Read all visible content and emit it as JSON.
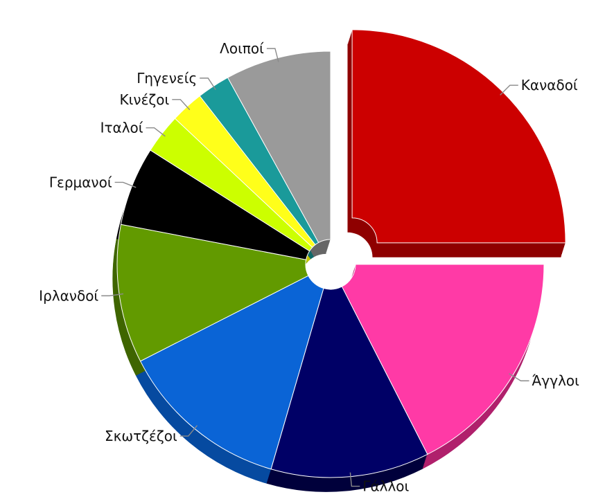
{
  "chart_data": {
    "type": "pie",
    "style": "3d-donut-exploded",
    "legend": "none",
    "slices": [
      {
        "label": "Καναδοί",
        "value": 25.0,
        "color": "#cc0000",
        "side": "#8f0000",
        "exploded": true
      },
      {
        "label": "Άγγλοι",
        "value": 17.5,
        "color": "#ff3aa6",
        "side": "#b0206c"
      },
      {
        "label": "Γάλλοι",
        "value": 12.0,
        "color": "#000066",
        "side": "#00003b"
      },
      {
        "label": "Σκωτζέζοι",
        "value": 13.0,
        "color": "#0a64d6",
        "side": "#064aa0"
      },
      {
        "label": "Ιρλανδοί",
        "value": 10.5,
        "color": "#629a00",
        "side": "#3f6500"
      },
      {
        "label": "Γερμανοί",
        "value": 6.0,
        "color": "#000000",
        "side": "#000000"
      },
      {
        "label": "Ιταλοί",
        "value": 3.0,
        "color": "#ccff00",
        "side": "#92b800"
      },
      {
        "label": "Κινέζοι",
        "value": 2.5,
        "color": "#ffff1a",
        "side": "#c4c400"
      },
      {
        "label": "Γηγενείς",
        "value": 2.5,
        "color": "#1a9a9a",
        "side": "#0f6a6a"
      },
      {
        "label": "Λοιποί",
        "value": 8.0,
        "color": "#9a9a9a",
        "side": "#666666"
      }
    ]
  }
}
